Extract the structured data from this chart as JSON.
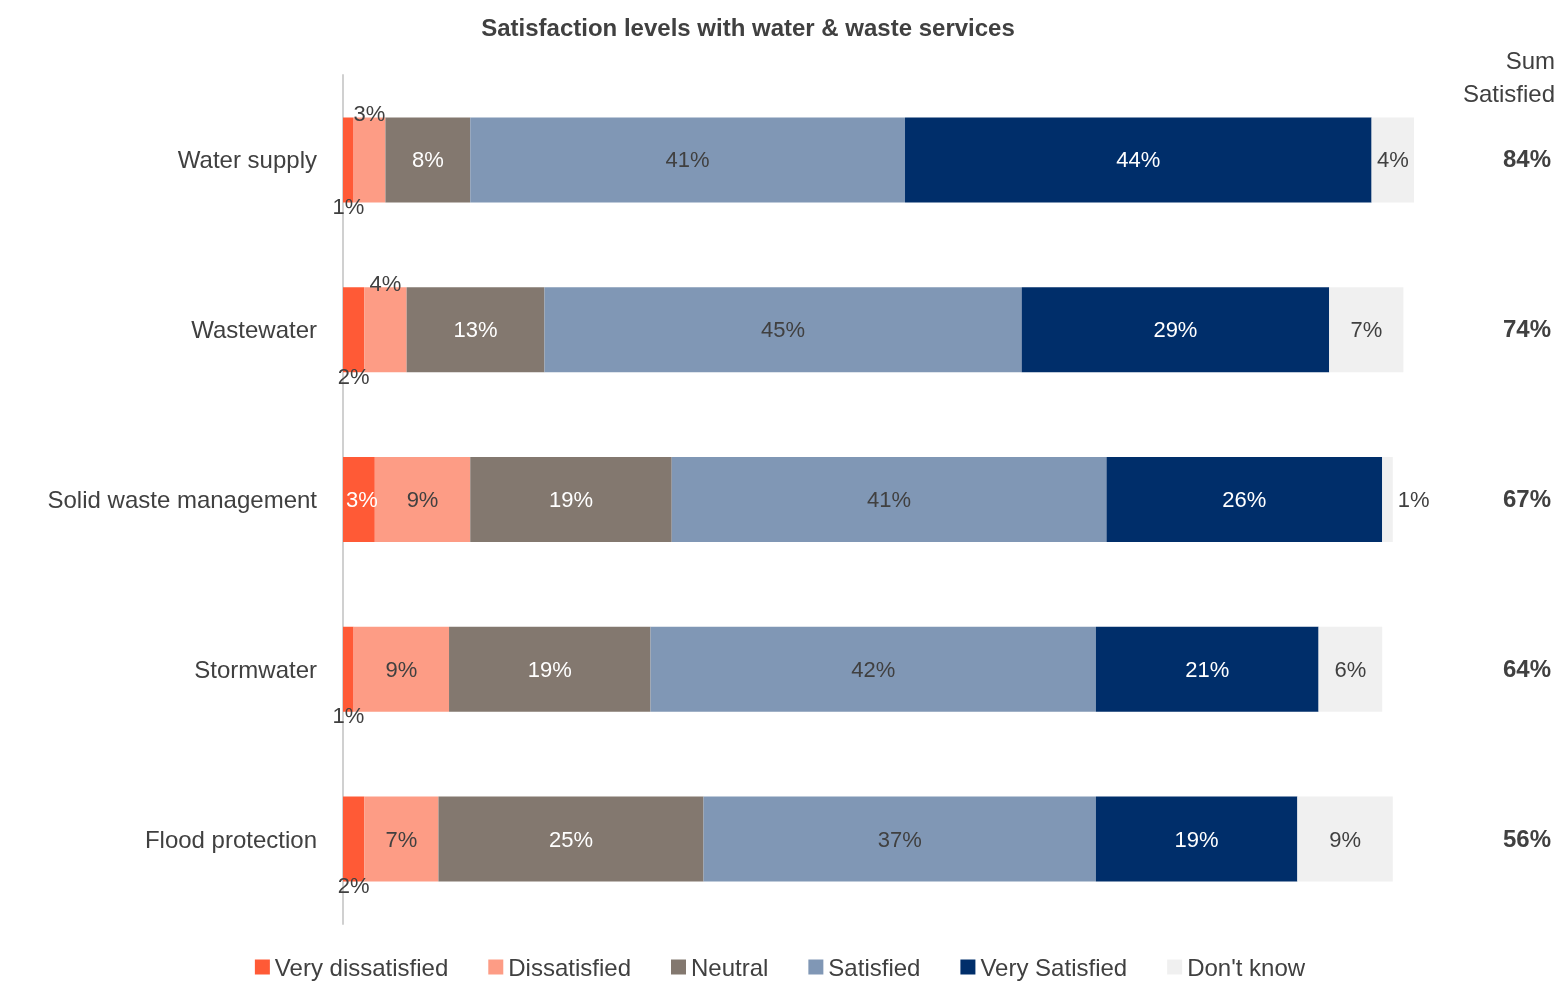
{
  "chart_data": {
    "type": "bar",
    "orientation": "horizontal",
    "stacked": true,
    "title": "Satisfaction levels with water & waste services",
    "categories": [
      "Water supply",
      "Wastewater",
      "Solid waste management",
      "Stormwater",
      "Flood protection"
    ],
    "series": [
      {
        "name": "Very dissatisfied",
        "color": "#ff5a36",
        "values": [
          1,
          2,
          3,
          1,
          2
        ],
        "value_labels": [
          "1%",
          "2%",
          "3%",
          "1%",
          "2%"
        ]
      },
      {
        "name": "Dissatisfied",
        "color": "#fd9c85",
        "values": [
          3,
          4,
          9,
          9,
          7
        ],
        "value_labels": [
          "3%",
          "4%",
          "9%",
          "9%",
          "7%"
        ]
      },
      {
        "name": "Neutral",
        "color": "#83786f",
        "values": [
          8,
          13,
          19,
          19,
          25
        ],
        "value_labels": [
          "8%",
          "13%",
          "19%",
          "19%",
          "25%"
        ]
      },
      {
        "name": "Satisfied",
        "color": "#8097b5",
        "values": [
          41,
          45,
          41,
          42,
          37
        ],
        "value_labels": [
          "41%",
          "45%",
          "41%",
          "42%",
          "37%"
        ]
      },
      {
        "name": "Very Satisfied",
        "color": "#002e6a",
        "values": [
          44,
          29,
          26,
          21,
          19
        ],
        "value_labels": [
          "44%",
          "29%",
          "26%",
          "21%",
          "19%"
        ]
      },
      {
        "name": "Don't know",
        "color": "#f0f0f0",
        "values": [
          4,
          7,
          1,
          6,
          9
        ],
        "value_labels": [
          "4%",
          "7%",
          "1%",
          "6%",
          "9%"
        ]
      }
    ],
    "legend": "bottom",
    "annotations": [
      "Sum Satisfied",
      "84%",
      "74%",
      "67%",
      "64%",
      "56%"
    ]
  }
}
